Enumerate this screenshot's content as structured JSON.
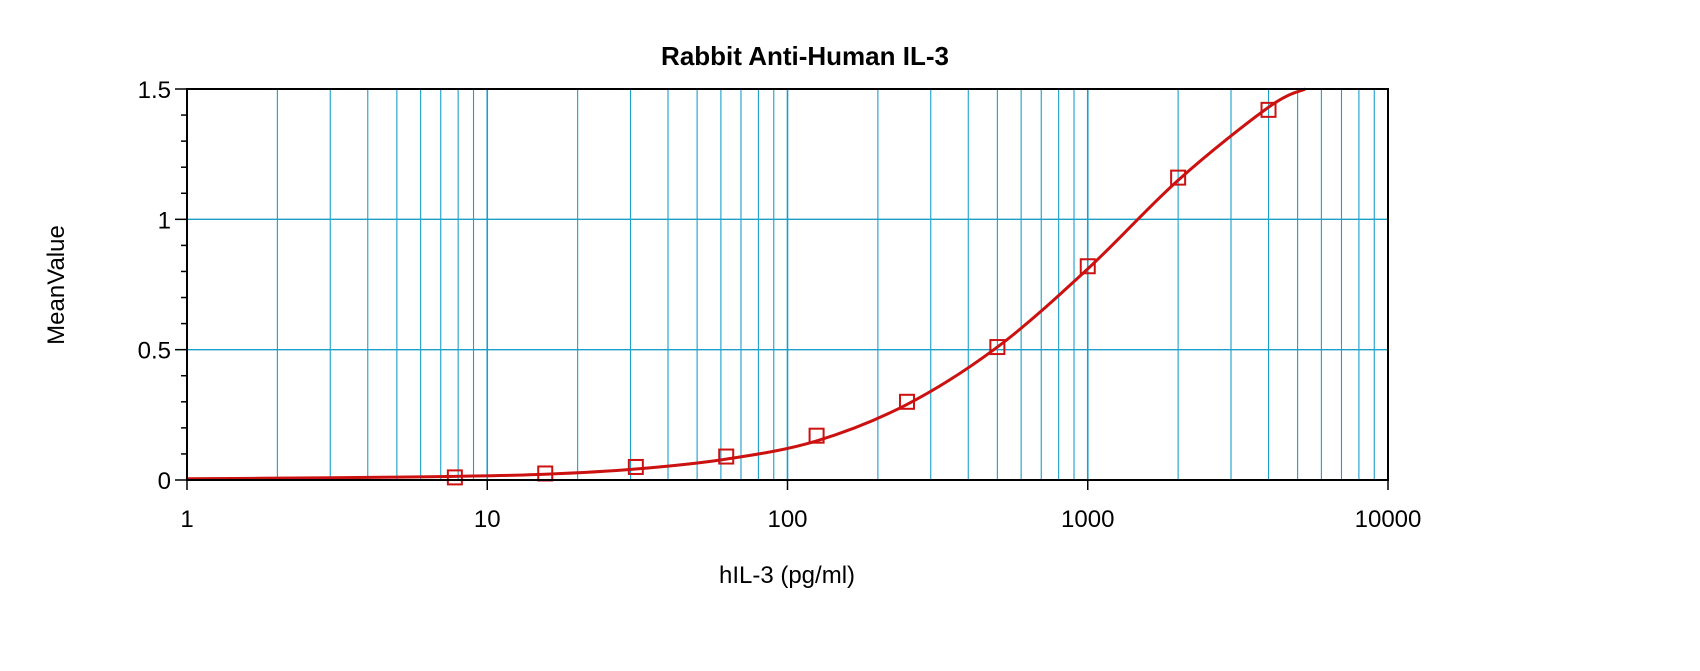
{
  "chart_data": {
    "type": "scatter",
    "title": "Rabbit Anti-Human IL-3",
    "xlabel": "hIL-3 (pg/ml)",
    "ylabel": "MeanValue",
    "xscale": "log",
    "xlim": [
      1,
      10000
    ],
    "ylim": [
      0,
      1.5
    ],
    "x_ticks": [
      1,
      10,
      100,
      1000,
      10000
    ],
    "x_tick_labels": [
      "1",
      "10",
      "100",
      "1000",
      "10000"
    ],
    "y_ticks": [
      0,
      0.5,
      1,
      1.5
    ],
    "y_tick_labels": [
      "0",
      "0.5",
      "1",
      "1.5"
    ],
    "grid": true,
    "colors": {
      "grid": "#1a9fc9",
      "series": "#cc1111",
      "frame": "#000000"
    },
    "series": [
      {
        "marker": "square",
        "x": [
          7.8,
          15.6,
          31.25,
          62.5,
          125,
          250,
          500,
          1000,
          2000,
          4000
        ],
        "y": [
          0.01,
          0.025,
          0.05,
          0.09,
          0.17,
          0.3,
          0.51,
          0.82,
          1.16,
          1.42
        ]
      }
    ],
    "fit_curve": {
      "x": [
        1,
        2,
        5,
        7.8,
        15.6,
        31.25,
        62.5,
        125,
        250,
        500,
        1000,
        2000,
        4000,
        5300
      ],
      "y": [
        0.005,
        0.007,
        0.011,
        0.014,
        0.022,
        0.042,
        0.08,
        0.15,
        0.29,
        0.51,
        0.81,
        1.15,
        1.43,
        1.5
      ]
    }
  }
}
